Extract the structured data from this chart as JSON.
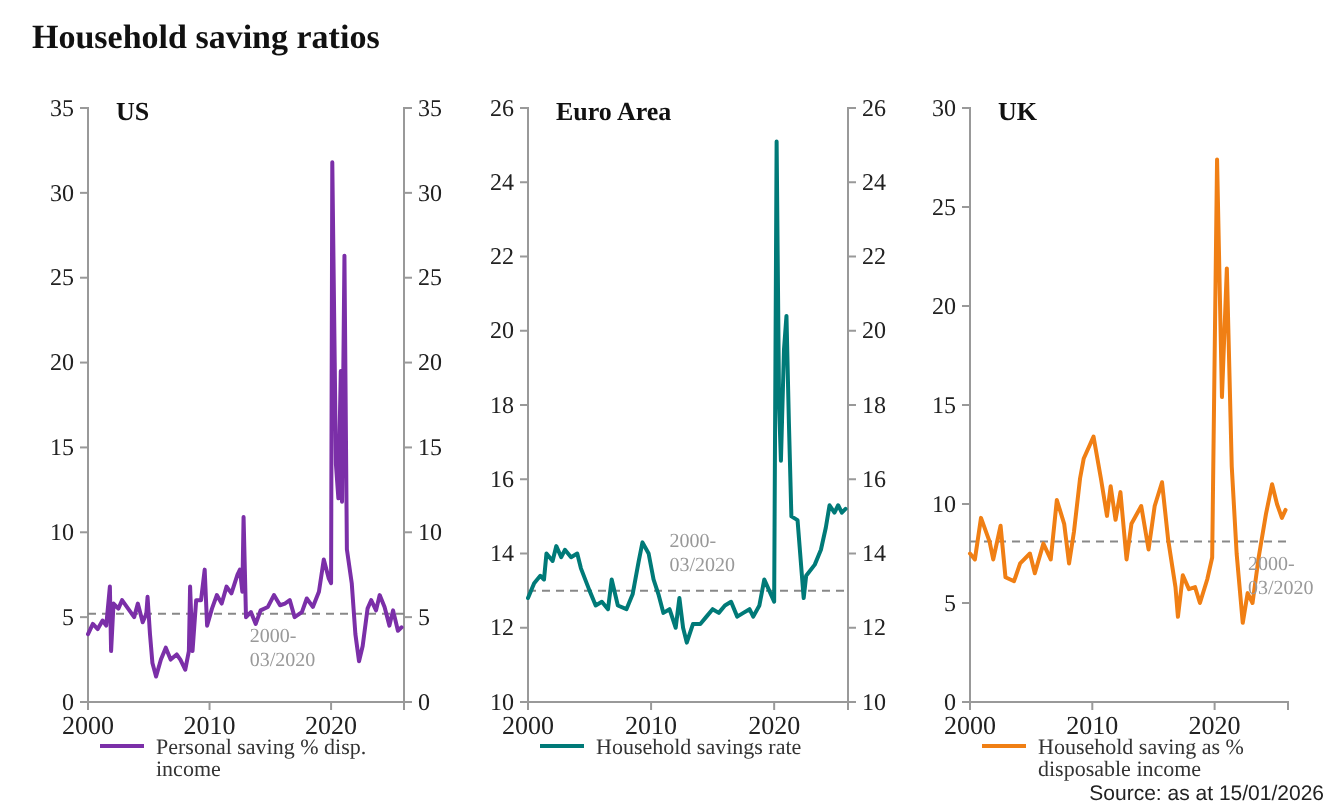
{
  "chart_data": [
    {
      "type": "line",
      "title": "US",
      "annotations": [
        "Household saving ratios",
        "2000-\n03/2020"
      ],
      "xlim": [
        2000,
        2026
      ],
      "xticks": [
        2000,
        2010,
        2020
      ],
      "ylim": [
        0,
        35
      ],
      "yticks": [
        0,
        5,
        10,
        15,
        20,
        25,
        30,
        35
      ],
      "y2lim": [
        0,
        35
      ],
      "y2ticks": [
        0,
        5,
        10,
        15,
        20,
        25,
        30,
        35
      ],
      "grid": false,
      "legend": "bottom",
      "line_style": "solid",
      "marker": "none",
      "ref_lines": [
        {
          "axis": "y",
          "value": 5.2,
          "color": "#888888",
          "line_style": "dashed"
        }
      ],
      "series": [
        {
          "name": "Personal saving % disp. income",
          "color": "#7b2fa8",
          "x": [
            2000,
            2000.4,
            2000.8,
            2001.2,
            2001.5,
            2001.8,
            2001.9,
            2002.1,
            2002.5,
            2002.8,
            2003.3,
            2003.8,
            2004.1,
            2004.5,
            2004.8,
            2004.9,
            2005.1,
            2005.3,
            2005.6,
            2006,
            2006.4,
            2006.8,
            2007.3,
            2007.6,
            2008,
            2008.3,
            2008.4,
            2008.6,
            2008.9,
            2009.3,
            2009.6,
            2009.8,
            2010.2,
            2010.6,
            2011,
            2011.4,
            2011.8,
            2012.3,
            2012.5,
            2012.7,
            2012.8,
            2013,
            2013.4,
            2013.8,
            2014.2,
            2014.8,
            2015.3,
            2015.8,
            2016.2,
            2016.6,
            2017,
            2017.6,
            2018,
            2018.5,
            2019,
            2019.4,
            2019.8,
            2020,
            2020.1,
            2020.3,
            2020.4,
            2020.6,
            2020.8,
            2020.9,
            2021.1,
            2021.3,
            2021.7,
            2022,
            2022.3,
            2022.6,
            2023,
            2023.3,
            2023.7,
            2024,
            2024.4,
            2024.8,
            2025.1,
            2025.5,
            2025.8
          ],
          "values": [
            4.0,
            4.6,
            4.3,
            4.8,
            4.5,
            6.8,
            3.0,
            5.8,
            5.5,
            6.0,
            5.5,
            5.0,
            5.8,
            4.7,
            5.2,
            6.2,
            4.0,
            2.3,
            1.5,
            2.5,
            3.2,
            2.5,
            2.8,
            2.5,
            1.9,
            3.0,
            6.8,
            3.0,
            6.0,
            6.0,
            7.8,
            4.5,
            5.5,
            6.3,
            5.8,
            6.8,
            6.4,
            7.5,
            7.8,
            6.5,
            10.9,
            5.0,
            5.3,
            4.6,
            5.4,
            5.6,
            6.3,
            5.7,
            5.8,
            6.0,
            5.0,
            5.3,
            6.1,
            5.6,
            6.5,
            8.4,
            7.3,
            7.0,
            31.8,
            20,
            14,
            12,
            19.5,
            11.8,
            26.3,
            9.0,
            7.0,
            4.0,
            2.4,
            3.3,
            5.5,
            6.0,
            5.4,
            6.3,
            5.6,
            4.5,
            5.4,
            4.2,
            4.4
          ]
        }
      ]
    },
    {
      "type": "line",
      "title": "Euro Area",
      "annotations": [
        "2000-\n03/2020"
      ],
      "xlim": [
        2000,
        2026
      ],
      "xticks": [
        2000,
        2010,
        2020
      ],
      "ylim": [
        10,
        26
      ],
      "yticks": [
        10,
        12,
        14,
        16,
        18,
        20,
        22,
        24,
        26
      ],
      "y2lim": [
        10,
        26
      ],
      "y2ticks": [
        10,
        12,
        14,
        16,
        18,
        20,
        22,
        24,
        26
      ],
      "grid": false,
      "legend": "bottom",
      "line_style": "solid",
      "marker": "none",
      "ref_lines": [
        {
          "axis": "y",
          "value": 13.0,
          "color": "#888888",
          "line_style": "dashed"
        }
      ],
      "series": [
        {
          "name": "Household savings rate",
          "color": "#007a78",
          "x": [
            2000,
            2000.5,
            2001,
            2001.3,
            2001.5,
            2002,
            2002.3,
            2002.7,
            2003,
            2003.5,
            2004,
            2004.3,
            2005,
            2005.5,
            2006,
            2006.5,
            2006.8,
            2007.3,
            2008,
            2008.5,
            2009,
            2009.3,
            2009.8,
            2010.2,
            2010.6,
            2011,
            2011.5,
            2012,
            2012.3,
            2012.6,
            2012.9,
            2013.4,
            2014,
            2014.5,
            2015,
            2015.5,
            2016,
            2016.5,
            2017,
            2017.5,
            2018,
            2018.3,
            2018.8,
            2019.2,
            2019.6,
            2020,
            2020.2,
            2020.4,
            2020.55,
            2020.8,
            2021,
            2021.2,
            2021.4,
            2021.9,
            2022.4,
            2022.6,
            2023.3,
            2023.8,
            2024.2,
            2024.5,
            2024.9,
            2025.2,
            2025.5,
            2025.8
          ],
          "values": [
            12.8,
            13.2,
            13.4,
            13.3,
            14.0,
            13.8,
            14.2,
            13.9,
            14.1,
            13.9,
            14.0,
            13.6,
            13.0,
            12.6,
            12.7,
            12.5,
            13.3,
            12.6,
            12.5,
            12.9,
            13.8,
            14.3,
            14.0,
            13.3,
            12.9,
            12.4,
            12.5,
            12.0,
            12.8,
            12.0,
            11.6,
            12.1,
            12.1,
            12.3,
            12.5,
            12.4,
            12.6,
            12.7,
            12.3,
            12.4,
            12.5,
            12.3,
            12.6,
            13.3,
            13.0,
            12.7,
            25.1,
            18,
            16.5,
            19.5,
            20.4,
            17.5,
            15.0,
            14.9,
            12.8,
            13.4,
            13.7,
            14.1,
            14.7,
            15.3,
            15.1,
            15.3,
            15.1,
            15.2
          ]
        }
      ]
    },
    {
      "type": "line",
      "title": "UK",
      "annotations": [
        "Source: as at 15/01/2026",
        "2000-\n03/2020"
      ],
      "xlim": [
        2000,
        2026
      ],
      "xticks": [
        2000,
        2010,
        2020
      ],
      "ylim": [
        0,
        30
      ],
      "yticks": [
        0,
        5,
        10,
        15,
        20,
        25,
        30
      ],
      "grid": false,
      "legend": "bottom",
      "line_style": "solid",
      "marker": "none",
      "ref_lines": [
        {
          "axis": "y",
          "value": 8.1,
          "color": "#888888",
          "line_style": "dashed"
        }
      ],
      "series": [
        {
          "name": "Household saving as % disposable income",
          "color": "#f07f14",
          "x": [
            2000,
            2000.4,
            2000.9,
            2001.6,
            2001.9,
            2002.5,
            2002.9,
            2003.6,
            2004.1,
            2004.9,
            2005.3,
            2006,
            2006.6,
            2007.1,
            2007.7,
            2008.1,
            2008.5,
            2009,
            2009.3,
            2010.1,
            2010.7,
            2011.2,
            2011.5,
            2011.9,
            2012.3,
            2012.8,
            2013.2,
            2014,
            2014.6,
            2015.1,
            2015.7,
            2016.2,
            2016.8,
            2017,
            2017.4,
            2017.9,
            2018.4,
            2018.8,
            2019.4,
            2019.8,
            2020.2,
            2020.6,
            2021,
            2021.4,
            2021.8,
            2022.3,
            2022.7,
            2023.1,
            2023.6,
            2024.2,
            2024.7,
            2025.1,
            2025.5,
            2025.8
          ],
          "values": [
            7.5,
            7.2,
            9.3,
            8.1,
            7.2,
            8.9,
            6.3,
            6.1,
            7.0,
            7.5,
            6.5,
            8.0,
            7.2,
            10.2,
            9.0,
            7.0,
            8.6,
            11.3,
            12.3,
            13.4,
            11.3,
            9.4,
            10.9,
            9.2,
            10.6,
            7.2,
            9.0,
            9.9,
            7.7,
            9.9,
            11.1,
            8.2,
            5.8,
            4.3,
            6.4,
            5.7,
            5.8,
            5.0,
            6.2,
            7.3,
            27.4,
            15.4,
            21.9,
            11.9,
            7.5,
            4.0,
            5.5,
            5.0,
            7.3,
            9.5,
            11.0,
            10.0,
            9.3,
            9.7
          ]
        }
      ]
    }
  ]
}
